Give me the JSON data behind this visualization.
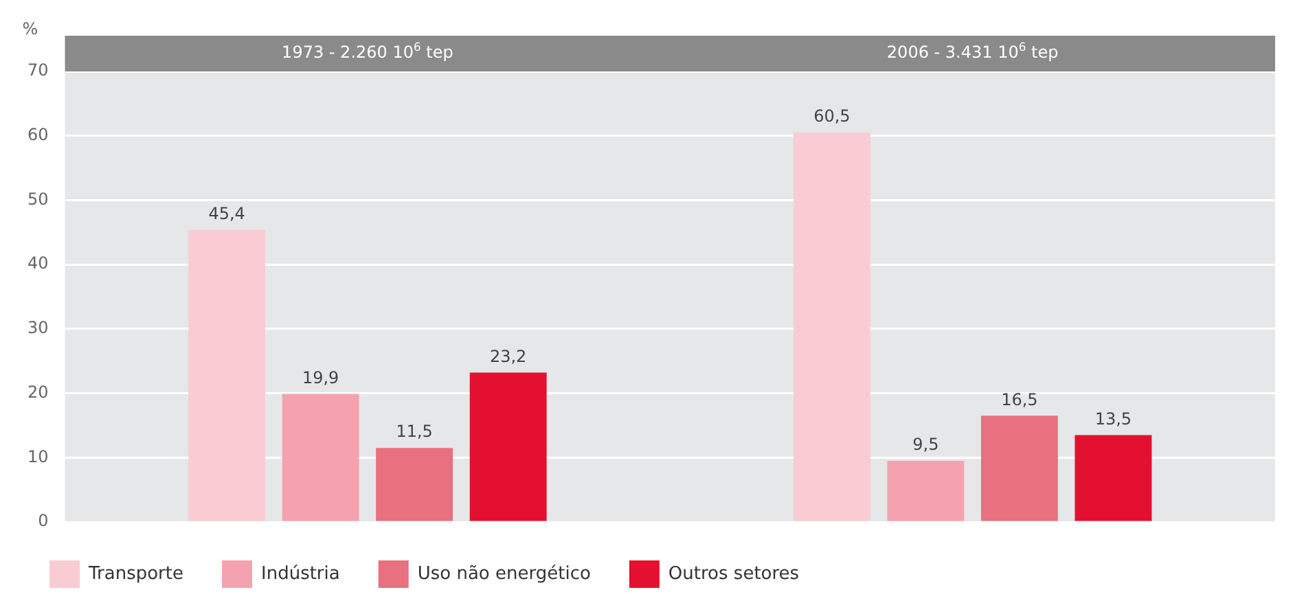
{
  "chart_data": {
    "type": "bar",
    "ylabel": "%",
    "categories": [
      "1973 - 2.260 10$^{6}$ tep",
      "2006 - 3.431 10$^{6}$ tep"
    ],
    "series": [
      {
        "name": "Transporte",
        "color": "#f9ccd3",
        "values": [
          45.4,
          60.5
        ],
        "value_labels": [
          "45,4",
          "60,5"
        ]
      },
      {
        "name": "Indústria",
        "color": "#f4a3ae",
        "values": [
          19.9,
          9.5
        ],
        "value_labels": [
          "19,9",
          "9,5"
        ]
      },
      {
        "name": "Uso não energético",
        "color": "#e9707f",
        "values": [
          11.5,
          16.5
        ],
        "value_labels": [
          "11,5",
          "16,5"
        ]
      },
      {
        "name": "Outros setores",
        "color": "#e3112f",
        "values": [
          23.2,
          13.5
        ],
        "value_labels": [
          "23,2",
          "13,5"
        ]
      }
    ],
    "ylim": [
      0,
      70
    ],
    "yticks": [
      0,
      10,
      20,
      30,
      40,
      50,
      60,
      70
    ],
    "grid": "y",
    "legend": "bottom left"
  }
}
